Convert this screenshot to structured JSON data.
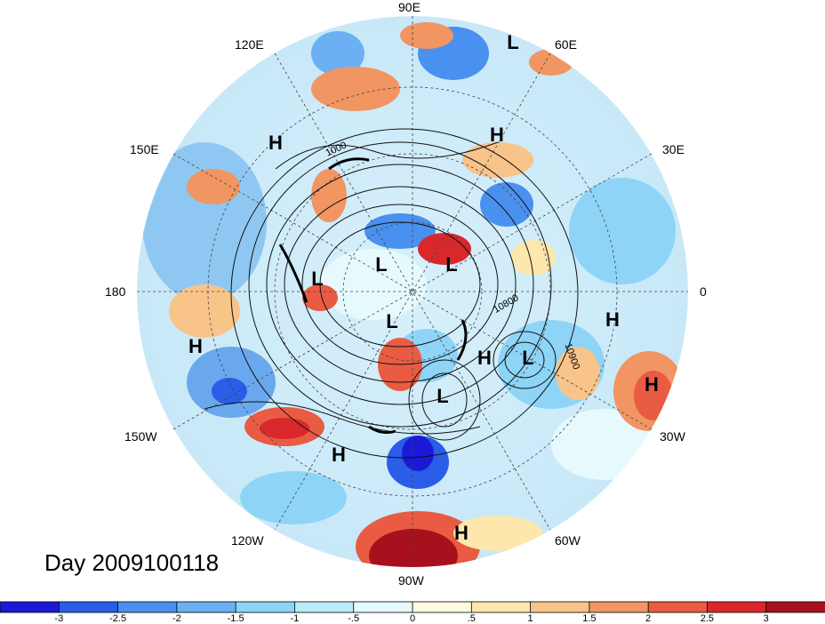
{
  "map": {
    "title": "Day 2009100118",
    "longitude_labels": {
      "n90e": "90E",
      "n120e": "120E",
      "n60e": "60E",
      "n150e": "150E",
      "n30e": "30E",
      "n180": "180",
      "n0": "0",
      "n150w": "150W",
      "n30w": "30W",
      "n120w": "120W",
      "n60w": "60W",
      "n90w": "90W"
    },
    "contour_labels": [
      "1000",
      "10800",
      "10900"
    ],
    "pressure_centers": [
      {
        "type": "L"
      },
      {
        "type": "H"
      },
      {
        "type": "H"
      },
      {
        "type": "L"
      },
      {
        "type": "L"
      },
      {
        "type": "L"
      },
      {
        "type": "L"
      },
      {
        "type": "H"
      },
      {
        "type": "H"
      },
      {
        "type": "L"
      },
      {
        "type": "H"
      },
      {
        "type": "L"
      },
      {
        "type": "H"
      },
      {
        "type": "H"
      },
      {
        "type": "H"
      }
    ]
  },
  "colorbar": {
    "colors": [
      "#1a1ad6",
      "#2a5de8",
      "#4a90ee",
      "#6ab0f2",
      "#8ed4f6",
      "#b8ecfb",
      "#e6fafe",
      "#fffbe0",
      "#fde7ad",
      "#f8c48a",
      "#f19562",
      "#e95b42",
      "#d8282c",
      "#a8101e"
    ],
    "ticks": [
      "-3",
      "-2.5",
      "-2",
      "-1.5",
      "-1",
      "-.5",
      "0",
      ".5",
      "1",
      "1.5",
      "2",
      "2.5",
      "3"
    ]
  }
}
